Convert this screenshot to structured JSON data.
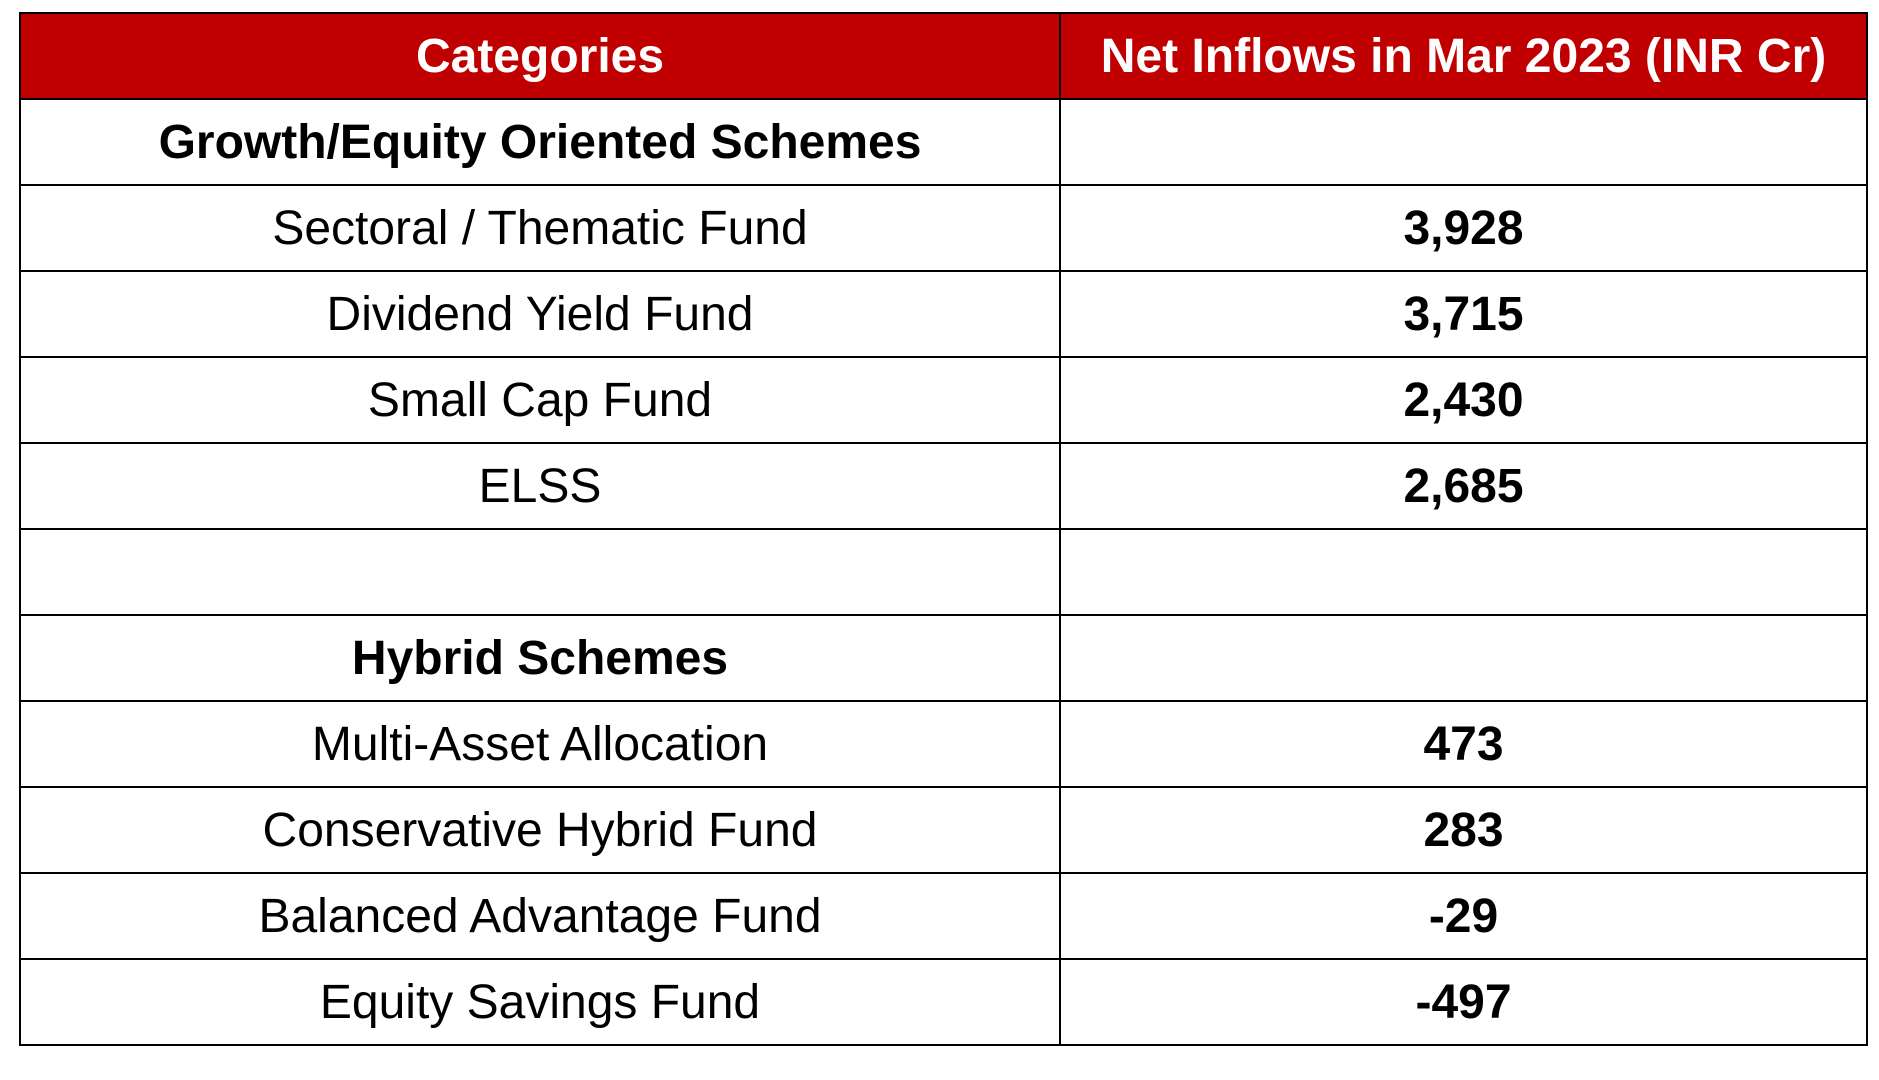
{
  "table": {
    "headers": {
      "category": "Categories",
      "value": "Net Inflows in Mar 2023 (INR Cr)"
    },
    "rows": [
      {
        "category": "Growth/Equity Oriented Schemes",
        "value": ""
      },
      {
        "category": "Sectoral / Thematic Fund",
        "value": "3,928"
      },
      {
        "category": "Dividend Yield Fund",
        "value": "3,715"
      },
      {
        "category": "Small Cap Fund",
        "value": "2,430"
      },
      {
        "category": "ELSS",
        "value": "2,685"
      },
      {
        "category": "",
        "value": ""
      },
      {
        "category": "Hybrid Schemes",
        "value": ""
      },
      {
        "category": "Multi-Asset Allocation",
        "value": "473"
      },
      {
        "category": "Conservative Hybrid Fund",
        "value": "283"
      },
      {
        "category": "Balanced Advantage Fund",
        "value": "-29"
      },
      {
        "category": "Equity Savings Fund",
        "value": "-497"
      }
    ]
  },
  "colors": {
    "header_background": "#c00000",
    "header_text": "#ffffff",
    "border": "#000000"
  }
}
